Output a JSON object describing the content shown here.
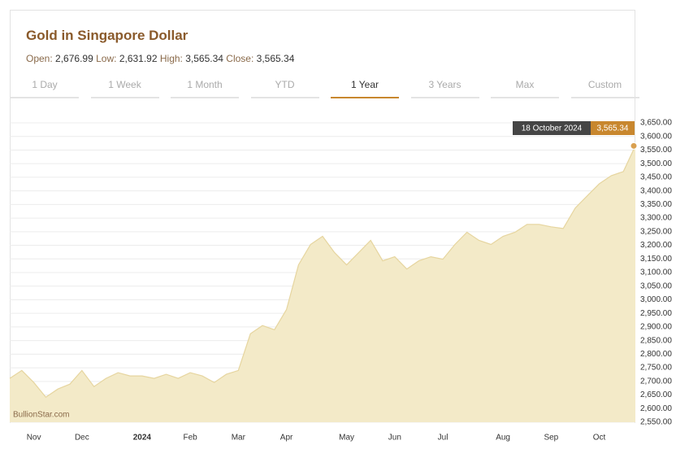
{
  "chart_data": {
    "type": "area",
    "title": "Gold in Singapore Dollar",
    "stats": [
      {
        "label": "Open:",
        "value": "2,676.99"
      },
      {
        "label": "Low:",
        "value": "2,631.92"
      },
      {
        "label": "High:",
        "value": "3,565.34"
      },
      {
        "label": "Close:",
        "value": "3,565.34"
      }
    ],
    "tabs": [
      {
        "label": "1 Day",
        "active": false
      },
      {
        "label": "1 Week",
        "active": false
      },
      {
        "label": "1 Month",
        "active": false
      },
      {
        "label": "YTD",
        "active": false
      },
      {
        "label": "1 Year",
        "active": true
      },
      {
        "label": "3 Years",
        "active": false
      },
      {
        "label": "Max",
        "active": false
      },
      {
        "label": "Custom",
        "active": false
      }
    ],
    "watermark": "BullionStar.com",
    "categories": [
      null,
      null,
      "Nov",
      null,
      null,
      null,
      "Dec",
      null,
      null,
      null,
      null,
      "2024",
      null,
      null,
      null,
      "Feb",
      null,
      null,
      null,
      "Mar",
      null,
      null,
      null,
      "Apr",
      null,
      null,
      null,
      null,
      "May",
      null,
      null,
      null,
      "Jun",
      null,
      null,
      null,
      "Jul",
      null,
      null,
      null,
      null,
      "Aug",
      null,
      null,
      null,
      "Sep",
      null,
      null,
      null,
      "Oct",
      null,
      null,
      null
    ],
    "series": [
      {
        "name": "Gold in Singapore Dollar",
        "color": "#e6d59f",
        "fill": "#f3eac8",
        "values": [
          2711,
          2740,
          2696,
          2642,
          2672,
          2690,
          2740,
          2681,
          2711,
          2732,
          2720,
          2720,
          2711,
          2726,
          2711,
          2732,
          2720,
          2696,
          2726,
          2740,
          2875,
          2905,
          2890,
          2964,
          3128,
          3203,
          3233,
          3173,
          3128,
          3173,
          3218,
          3143,
          3158,
          3113,
          3143,
          3158,
          3149,
          3203,
          3248,
          3218,
          3203,
          3233,
          3248,
          3277,
          3277,
          3268,
          3262,
          3337,
          3382,
          3426,
          3456,
          3471,
          3565.34
        ]
      }
    ],
    "tooltip": {
      "date": "18 October 2024",
      "value_label": "3,565.34"
    },
    "ylim": [
      2550,
      3650
    ],
    "yticks": [
      {
        "value": 2550,
        "label": "2,550.00"
      },
      {
        "value": 2600,
        "label": "2,600.00"
      },
      {
        "value": 2650,
        "label": "2,650.00"
      },
      {
        "value": 2700,
        "label": "2,700.00"
      },
      {
        "value": 2750,
        "label": "2,750.00"
      },
      {
        "value": 2800,
        "label": "2,800.00"
      },
      {
        "value": 2850,
        "label": "2,850.00"
      },
      {
        "value": 2900,
        "label": "2,900.00"
      },
      {
        "value": 2950,
        "label": "2,950.00"
      },
      {
        "value": 3000,
        "label": "3,000.00"
      },
      {
        "value": 3050,
        "label": "3,050.00"
      },
      {
        "value": 3100,
        "label": "3,100.00"
      },
      {
        "value": 3150,
        "label": "3,150.00"
      },
      {
        "value": 3200,
        "label": "3,200.00"
      },
      {
        "value": 3250,
        "label": "3,250.00"
      },
      {
        "value": 3300,
        "label": "3,300.00"
      },
      {
        "value": 3350,
        "label": "3,350.00"
      },
      {
        "value": 3400,
        "label": "3,400.00"
      },
      {
        "value": 3450,
        "label": "3,450.00"
      },
      {
        "value": 3500,
        "label": "3,500.00"
      },
      {
        "value": 3550,
        "label": "3,550.00"
      },
      {
        "value": 3600,
        "label": "3,600.00"
      },
      {
        "value": 3650,
        "label": "3,650.00"
      }
    ],
    "grid": true
  }
}
